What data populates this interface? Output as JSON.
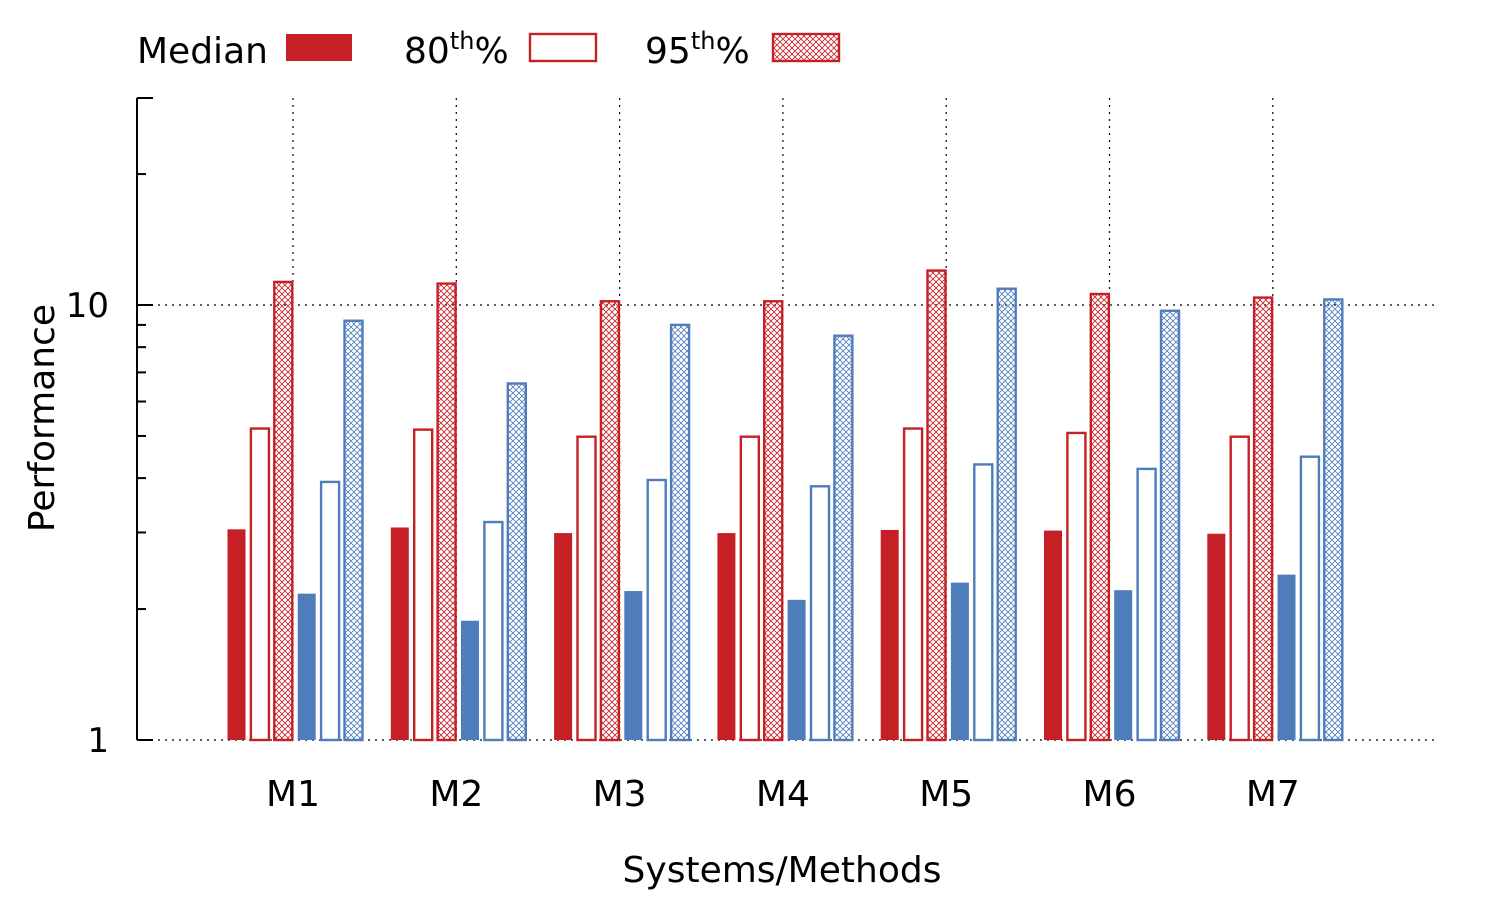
{
  "chart_data": {
    "type": "bar",
    "title": "",
    "xlabel": "Systems/Methods",
    "ylabel": "Performance",
    "yscale": "log",
    "ylim": [
      1,
      25
    ],
    "yticks": [
      {
        "value": 1,
        "label": "1"
      },
      {
        "value": 10,
        "label": "10"
      }
    ],
    "categories": [
      "M1",
      "M2",
      "M3",
      "M4",
      "M5",
      "M6",
      "M7"
    ],
    "legend": {
      "placement": "top-left",
      "entries": [
        {
          "label": "Median",
          "sup": "",
          "suffix": "",
          "style": "solid"
        },
        {
          "label": "80",
          "sup": "th",
          "suffix": "%",
          "style": "outline"
        },
        {
          "label": "95",
          "sup": "th",
          "suffix": "%",
          "style": "hatched"
        }
      ]
    },
    "series": [
      {
        "group": "red",
        "stat": "Median",
        "color": "#c42026",
        "style": "solid",
        "values": [
          3.05,
          3.08,
          2.99,
          2.99,
          3.04,
          3.03,
          2.98
        ]
      },
      {
        "group": "red",
        "stat": "80th%",
        "color": "#c42026",
        "style": "outline",
        "values": [
          5.2,
          5.17,
          4.98,
          4.98,
          5.2,
          5.08,
          4.98
        ]
      },
      {
        "group": "red",
        "stat": "95th%",
        "color": "#c42026",
        "style": "hatched",
        "values": [
          11.3,
          11.2,
          10.2,
          10.2,
          12.0,
          10.6,
          10.4
        ]
      },
      {
        "group": "blue",
        "stat": "Median",
        "color": "#4f7cba",
        "style": "solid",
        "values": [
          2.17,
          1.88,
          2.2,
          2.1,
          2.3,
          2.21,
          2.4
        ]
      },
      {
        "group": "blue",
        "stat": "80th%",
        "color": "#4f7cba",
        "style": "outline",
        "values": [
          3.92,
          3.17,
          3.96,
          3.83,
          4.3,
          4.2,
          4.48
        ]
      },
      {
        "group": "blue",
        "stat": "95th%",
        "color": "#4f7cba",
        "style": "hatched",
        "values": [
          9.2,
          6.6,
          9.0,
          8.5,
          10.9,
          9.7,
          10.3
        ]
      }
    ]
  }
}
